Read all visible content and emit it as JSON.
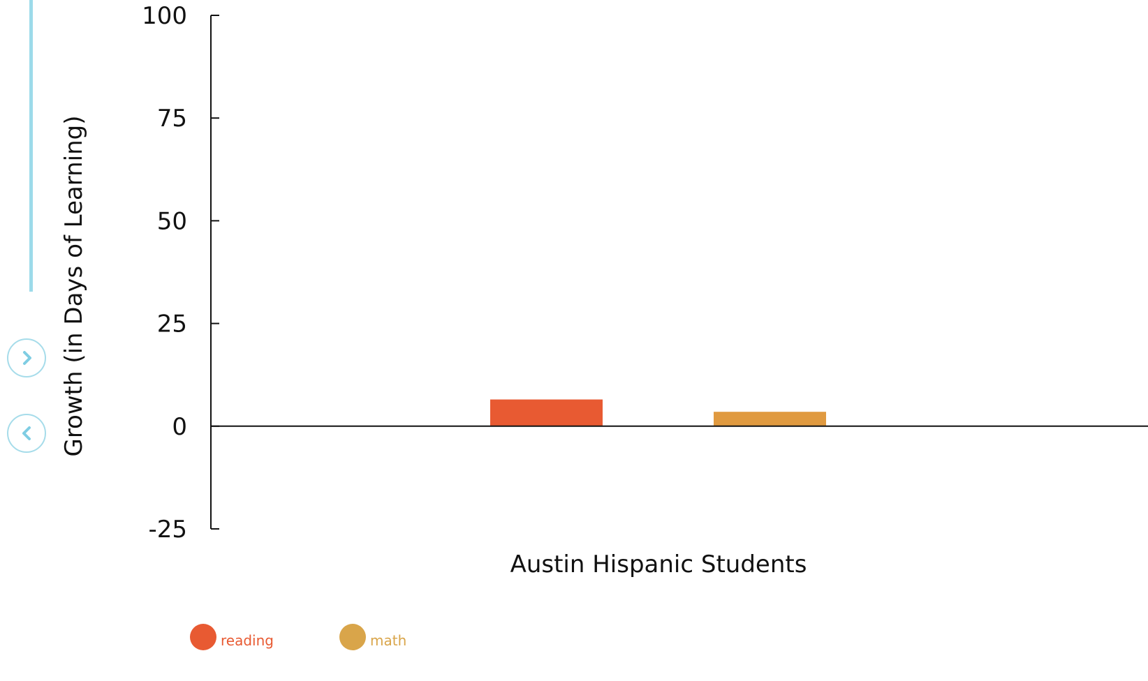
{
  "nav": {
    "next_icon": "chevron-right-icon",
    "prev_icon": "chevron-left-icon",
    "accent_color": "#9ddbea"
  },
  "chart_data": {
    "type": "bar",
    "categories": [
      "Austin Hispanic Students"
    ],
    "series": [
      {
        "name": "reading",
        "values": [
          6.5
        ],
        "color": "#e85a32"
      },
      {
        "name": "math",
        "values": [
          3.5
        ],
        "color": "#e09a40"
      }
    ],
    "xlabel": "Austin Hispanic Students",
    "ylabel": "Growth (in Days of Learning)",
    "ylim": [
      -25,
      100
    ],
    "yticks": [
      "100",
      "75",
      "50",
      "25",
      "0",
      "-25"
    ],
    "grid": false,
    "legend_position": "bottom-left"
  },
  "legend": [
    {
      "label": "reading",
      "dot_color": "#e85a32",
      "text_color": "#e85a32"
    },
    {
      "label": "math",
      "dot_color": "#d9a54a",
      "text_color": "#d9a54a"
    }
  ]
}
